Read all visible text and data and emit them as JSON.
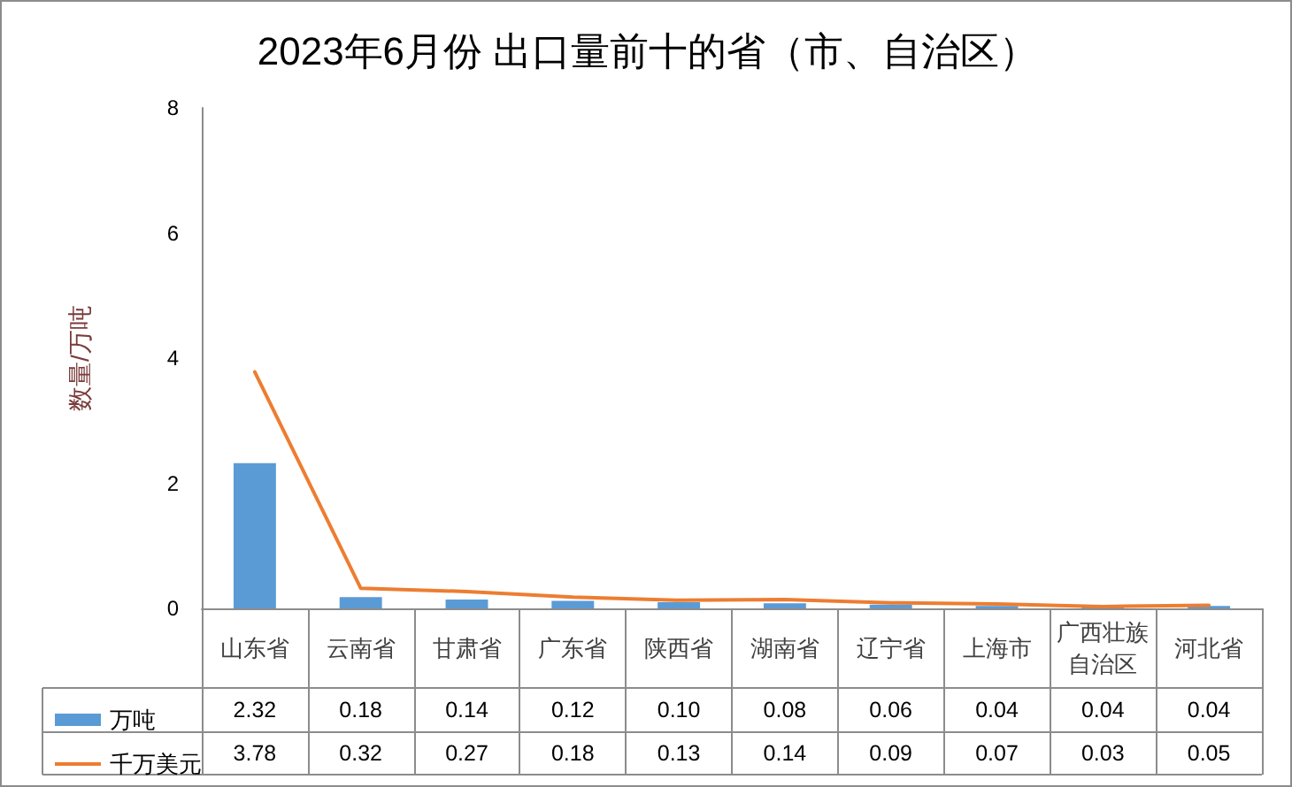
{
  "chart_data": {
    "type": "bar",
    "title": "2023年6月份 出口量前十的省（市、自治区）",
    "ylabel": "数量/万吨",
    "categories": [
      "山东省",
      "云南省",
      "甘肃省",
      "广东省",
      "陕西省",
      "湖南省",
      "辽宁省",
      "上海市",
      "广西壮族自治区",
      "河北省"
    ],
    "series": [
      {
        "name": "万吨",
        "color": "#5b9bd5",
        "values": [
          2.32,
          0.18,
          0.14,
          0.12,
          0.1,
          0.08,
          0.06,
          0.04,
          0.04,
          0.04
        ],
        "value_labels": [
          "2.32",
          "0.18",
          "0.14",
          "0.12",
          "0.10",
          "0.08",
          "0.06",
          "0.04",
          "0.04",
          "0.04"
        ]
      },
      {
        "name": "千万美元",
        "type": "line",
        "color": "#ed7d31",
        "values": [
          3.78,
          0.32,
          0.27,
          0.18,
          0.13,
          0.14,
          0.09,
          0.07,
          0.03,
          0.05
        ],
        "value_labels": [
          "3.78",
          "0.32",
          "0.27",
          "0.18",
          "0.13",
          "0.14",
          "0.09",
          "0.07",
          "0.03",
          "0.05"
        ]
      }
    ],
    "ylim": [
      0,
      8
    ],
    "yticks": [
      0,
      2,
      4,
      6,
      8
    ],
    "legend": "bottom left",
    "marker": "none"
  }
}
